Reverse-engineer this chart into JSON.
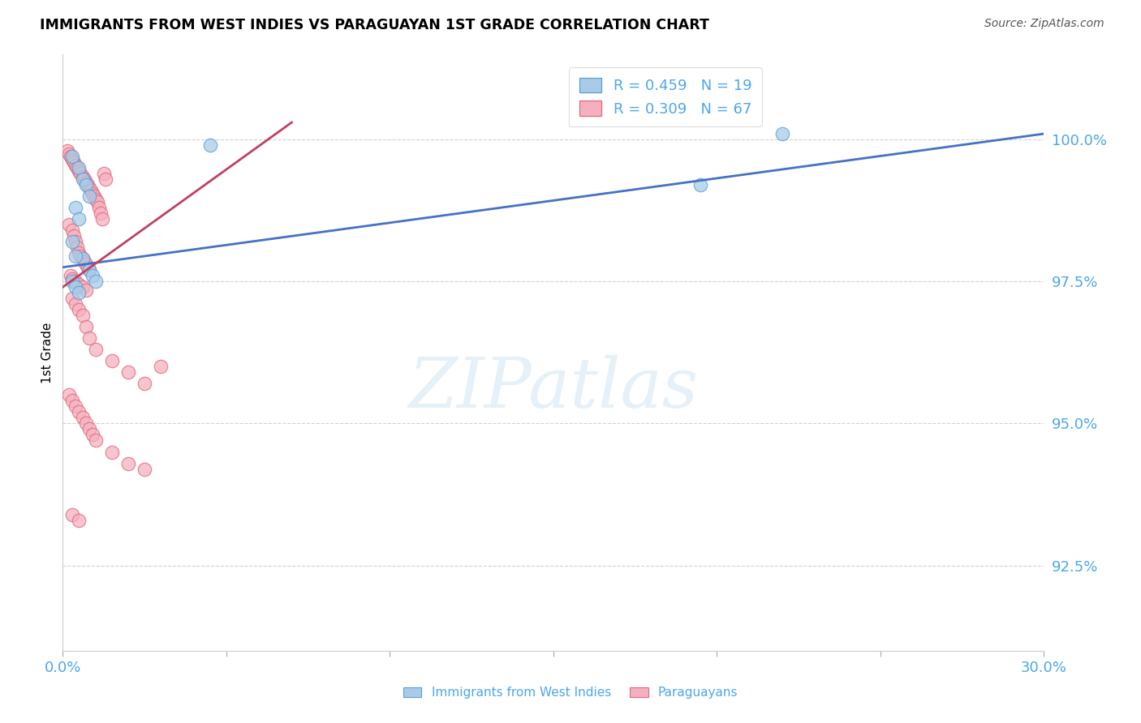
{
  "title": "IMMIGRANTS FROM WEST INDIES VS PARAGUAYAN 1ST GRADE CORRELATION CHART",
  "source": "Source: ZipAtlas.com",
  "ylabel": "1st Grade",
  "watermark_text": "ZIPatlas",
  "xlim": [
    0.0,
    30.0
  ],
  "ylim": [
    91.0,
    101.5
  ],
  "yticks": [
    92.5,
    95.0,
    97.5,
    100.0
  ],
  "xticks": [
    0.0,
    5.0,
    10.0,
    15.0,
    20.0,
    25.0,
    30.0
  ],
  "legend_r_blue": "R = 0.459",
  "legend_n_blue": "N = 19",
  "legend_r_pink": "R = 0.309",
  "legend_n_pink": "N = 67",
  "blue_face_color": "#a8cce8",
  "blue_edge_color": "#5a9fd4",
  "pink_face_color": "#f5b0c0",
  "pink_edge_color": "#e06878",
  "blue_line_color": "#4472c4",
  "pink_line_color": "#c04060",
  "grid_color": "#cccccc",
  "axis_tick_color": "#4da6e8",
  "background_color": "#ffffff",
  "blue_points_x": [
    0.3,
    0.5,
    0.6,
    0.7,
    0.8,
    0.4,
    0.5,
    0.6,
    0.8,
    0.9,
    1.0,
    0.3,
    0.4,
    0.5,
    4.5,
    22.0,
    19.5,
    0.3,
    0.4
  ],
  "blue_points_y": [
    99.7,
    99.5,
    99.3,
    99.2,
    99.0,
    98.8,
    98.6,
    97.9,
    97.7,
    97.6,
    97.5,
    97.5,
    97.4,
    97.3,
    99.9,
    100.1,
    99.2,
    98.2,
    97.95
  ],
  "pink_points_x": [
    0.15,
    0.2,
    0.25,
    0.3,
    0.35,
    0.4,
    0.45,
    0.5,
    0.55,
    0.6,
    0.65,
    0.7,
    0.75,
    0.8,
    0.85,
    0.9,
    0.95,
    1.0,
    1.05,
    1.1,
    1.15,
    1.2,
    1.25,
    1.3,
    0.2,
    0.3,
    0.35,
    0.4,
    0.45,
    0.5,
    0.55,
    0.6,
    0.65,
    0.7,
    0.75,
    0.8,
    0.25,
    0.3,
    0.4,
    0.5,
    0.6,
    0.7,
    0.3,
    0.4,
    0.5,
    0.6,
    0.7,
    0.8,
    1.0,
    1.5,
    2.0,
    2.5,
    3.0,
    0.2,
    0.3,
    0.4,
    0.5,
    0.6,
    0.7,
    0.8,
    0.9,
    1.0,
    1.5,
    2.0,
    2.5,
    0.3,
    0.5
  ],
  "pink_points_y": [
    99.8,
    99.75,
    99.7,
    99.65,
    99.6,
    99.55,
    99.5,
    99.45,
    99.4,
    99.35,
    99.3,
    99.25,
    99.2,
    99.15,
    99.1,
    99.05,
    99.0,
    98.95,
    98.9,
    98.8,
    98.7,
    98.6,
    99.4,
    99.3,
    98.5,
    98.4,
    98.3,
    98.2,
    98.1,
    98.0,
    97.95,
    97.9,
    97.85,
    97.8,
    97.75,
    97.7,
    97.6,
    97.55,
    97.5,
    97.45,
    97.4,
    97.35,
    97.2,
    97.1,
    97.0,
    96.9,
    96.7,
    96.5,
    96.3,
    96.1,
    95.9,
    95.7,
    96.0,
    95.5,
    95.4,
    95.3,
    95.2,
    95.1,
    95.0,
    94.9,
    94.8,
    94.7,
    94.5,
    94.3,
    94.2,
    93.4,
    93.3
  ]
}
